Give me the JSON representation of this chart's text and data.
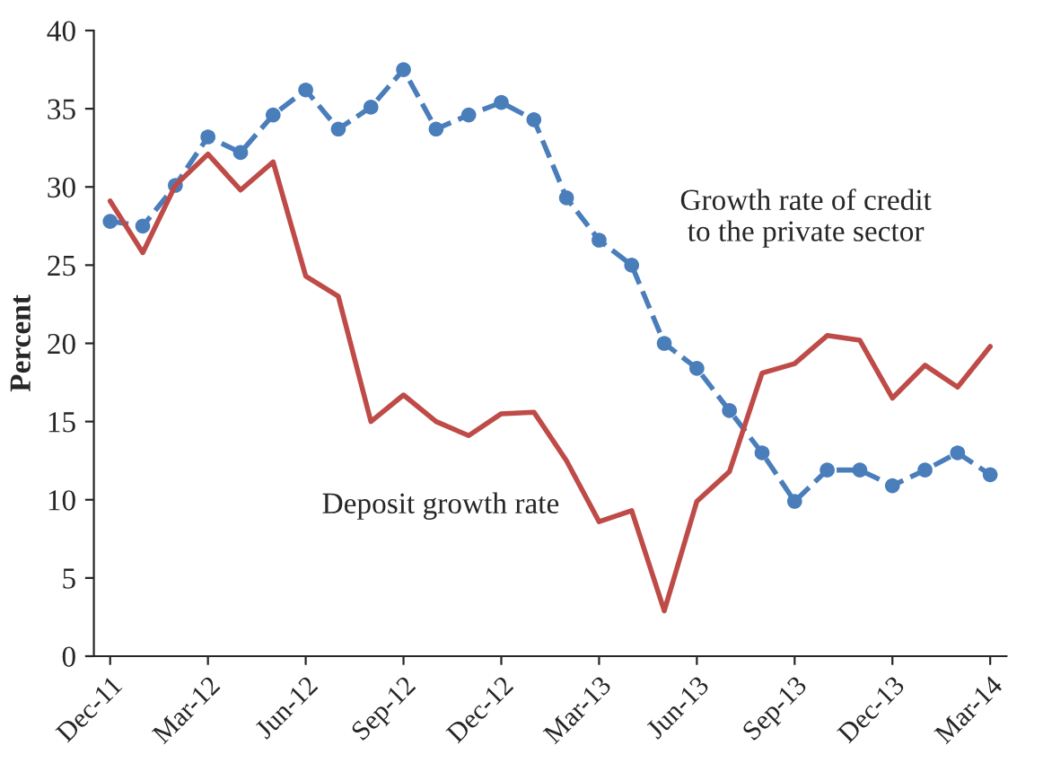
{
  "chart_data": {
    "type": "line",
    "ylabel": "Percent",
    "categories": [
      "Dec-11",
      null,
      null,
      "Mar-12",
      null,
      null,
      "Jun-12",
      null,
      null,
      "Sep-12",
      null,
      null,
      "Dec-12",
      null,
      null,
      "Mar-13",
      null,
      null,
      "Jun-13",
      null,
      null,
      "Sep-13",
      null,
      null,
      "Dec-13",
      null,
      null,
      "Mar-14"
    ],
    "series": [
      {
        "name": "Growth rate of credit\nto the private sector",
        "color": "#4a7ebb",
        "marker": "circle",
        "line_style": "dashed",
        "values": [
          27.8,
          27.5,
          30.1,
          33.2,
          32.2,
          34.6,
          36.2,
          33.7,
          35.1,
          37.5,
          33.7,
          34.6,
          35.4,
          34.3,
          29.3,
          26.6,
          25.0,
          20.0,
          18.4,
          15.7,
          13.0,
          9.9,
          11.9,
          11.9,
          10.9,
          11.9,
          13.0,
          11.6
        ]
      },
      {
        "name": "Deposit growth rate",
        "color": "#be4b48",
        "marker": "none",
        "line_style": "solid",
        "values": [
          29.1,
          25.8,
          30.1,
          32.1,
          29.8,
          31.6,
          24.3,
          23.0,
          15.0,
          16.7,
          15.0,
          14.1,
          15.5,
          15.6,
          12.5,
          8.6,
          9.3,
          2.9,
          9.9,
          11.8,
          18.1,
          18.7,
          20.5,
          20.2,
          16.5,
          18.6,
          17.2,
          19.8
        ]
      }
    ],
    "ylim": [
      0,
      40
    ],
    "yticks": [
      0,
      5,
      10,
      15,
      20,
      25,
      30,
      35,
      40
    ],
    "grid": false,
    "legend": false
  }
}
